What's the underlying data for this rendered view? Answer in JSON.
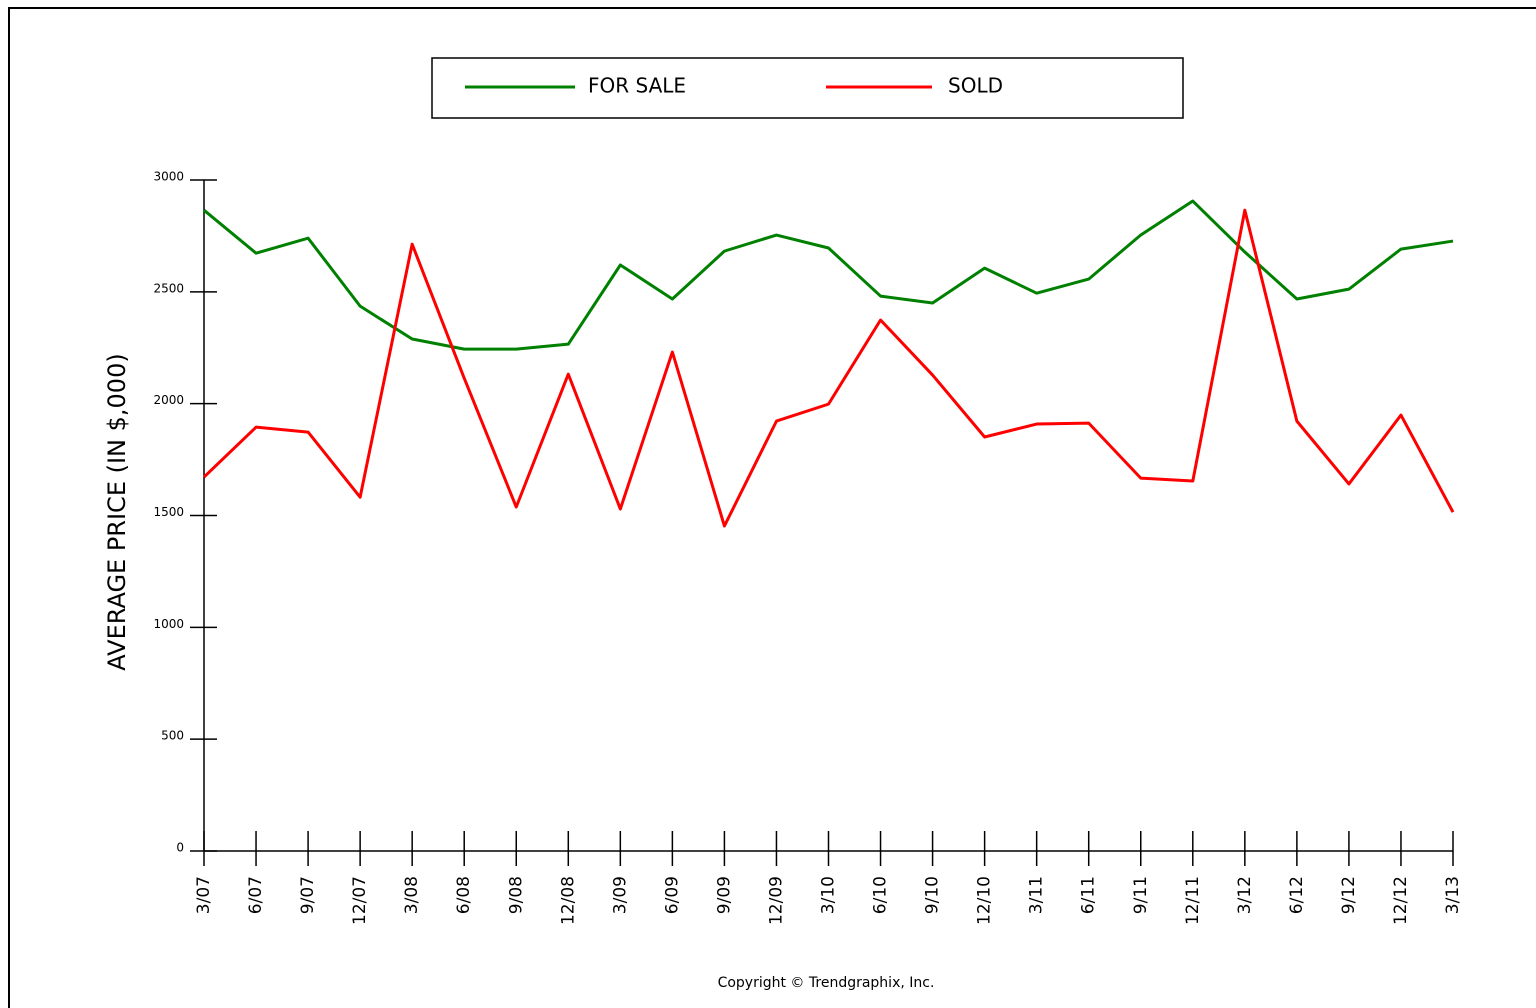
{
  "chart_data": {
    "type": "line",
    "y_label": "AVERAGE PRICE (IN $,000)",
    "footer": "Copyright © Trendgraphix, Inc.",
    "categories": [
      "3/07",
      "6/07",
      "9/07",
      "12/07",
      "3/08",
      "6/08",
      "9/08",
      "12/08",
      "3/09",
      "6/09",
      "9/09",
      "12/09",
      "3/10",
      "6/10",
      "9/10",
      "12/10",
      "3/11",
      "6/11",
      "9/11",
      "12/11",
      "3/12",
      "6/12",
      "9/12",
      "12/12",
      "3/13"
    ],
    "series": [
      {
        "name": "FOR SALE",
        "color": "#008000",
        "values": [
          2865,
          2673,
          2740,
          2436,
          2289,
          2244,
          2244,
          2266,
          2620,
          2468,
          2682,
          2754,
          2696,
          2481,
          2450,
          2606,
          2494,
          2557,
          2754,
          2906,
          2678,
          2468,
          2512,
          2691,
          2727
        ]
      },
      {
        "name": "SOLD",
        "color": "#ff0000",
        "values": [
          1672,
          1895,
          1873,
          1582,
          2713,
          2114,
          1538,
          2132,
          1529,
          2231,
          1453,
          1922,
          1998,
          2374,
          2128,
          1851,
          1909,
          1913,
          1667,
          1654,
          2865,
          1922,
          1641,
          1949,
          1515
        ]
      }
    ],
    "ylim": [
      0,
      3000
    ],
    "yticks": [
      0,
      500,
      1000,
      1500,
      2000,
      2500,
      3000
    ],
    "grid": false
  }
}
